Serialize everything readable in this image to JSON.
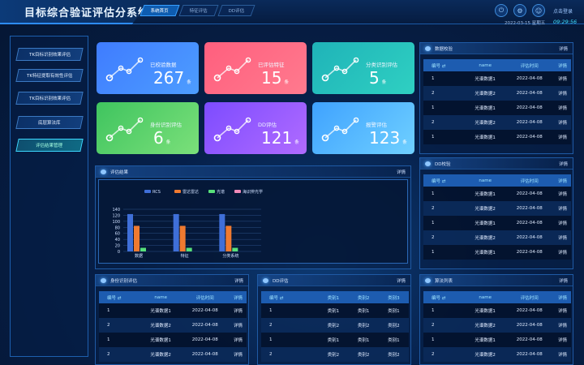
{
  "header": {
    "title": "目标综合验证评估分系统",
    "tabs": [
      "系统首页",
      "特征评估",
      "DD评估"
    ],
    "date": "2022-03-15  星期五",
    "time": "09:29:56",
    "login": "点击登录"
  },
  "sidebar": {
    "items": [
      "TK目标识别效果评估",
      "TK特征提取有效性评估",
      "TK目标识别效果评估",
      "底层算法库",
      "评估结果管理"
    ]
  },
  "cards": [
    {
      "label": "已校验数据",
      "value": "267",
      "unit": "条",
      "c1": "#3f7cff",
      "c2": "#4d9dff"
    },
    {
      "label": "已评估特征",
      "value": "15",
      "unit": "条",
      "c1": "#ff5f7e",
      "c2": "#ff7a8e"
    },
    {
      "label": "分类识别评估",
      "value": "5",
      "unit": "条",
      "c1": "#1fb3b8",
      "c2": "#2fd0c2"
    },
    {
      "label": "身份识别评估",
      "value": "6",
      "unit": "条",
      "c1": "#3fc45f",
      "c2": "#7be07a"
    },
    {
      "label": "DD评估",
      "value": "121",
      "unit": "条",
      "c1": "#7d4cff",
      "c2": "#b06bff"
    },
    {
      "label": "报警评估",
      "value": "123",
      "unit": "条",
      "c1": "#3fa2ff",
      "c2": "#6fd0ff"
    }
  ],
  "eval_panel": {
    "title": "评估结果",
    "more": "详情"
  },
  "chart_data": {
    "type": "bar",
    "categories": [
      "数据",
      "特征",
      "分类系统"
    ],
    "series": [
      {
        "name": "RCS",
        "color": "#3f6fd8",
        "values": [
          124,
          124,
          124
        ]
      },
      {
        "name": "雷达雷达",
        "color": "#ef7a30",
        "values": [
          85,
          85,
          85
        ]
      },
      {
        "name": "光谱",
        "color": "#58e07a",
        "values": [
          12,
          12,
          12
        ]
      },
      {
        "name": "海识辨光学",
        "color": "#f08ab8",
        "values": [
          0,
          0,
          0
        ]
      }
    ],
    "yticks": [
      0,
      20,
      40,
      60,
      80,
      100,
      120,
      140
    ],
    "ylim": [
      0,
      140
    ]
  },
  "table_headers_a": [
    "编号 ⇄",
    "name",
    "评估时间",
    "详情"
  ],
  "table_headers_b": [
    "编号 ⇄",
    "类别1",
    "类别2",
    "类别3"
  ],
  "panel_data_check": {
    "title": "数据校验",
    "more": "详情",
    "rows": [
      [
        "1",
        "光谱数据1",
        "2022-04-08",
        "详情"
      ],
      [
        "2",
        "光谱数据2",
        "2022-04-08",
        "详情"
      ],
      [
        "1",
        "光谱数据1",
        "2022-04-08",
        "详情"
      ],
      [
        "2",
        "光谱数据2",
        "2022-04-08",
        "详情"
      ],
      [
        "1",
        "光谱数据1",
        "2022-04-08",
        "详情"
      ]
    ]
  },
  "panel_dd_check": {
    "title": "DD校验",
    "more": "详情",
    "rows": [
      [
        "1",
        "光谱数据1",
        "2022-04-08",
        "详情"
      ],
      [
        "2",
        "光谱数据2",
        "2022-04-08",
        "详情"
      ],
      [
        "1",
        "光谱数据1",
        "2022-04-08",
        "详情"
      ],
      [
        "2",
        "光谱数据2",
        "2022-04-08",
        "详情"
      ],
      [
        "1",
        "光谱数据1",
        "2022-04-08",
        "详情"
      ]
    ]
  },
  "panel_identity": {
    "title": "身份识别评估",
    "more": "详情",
    "rows": [
      [
        "1",
        "光谱数据1",
        "2022-04-08",
        "详情"
      ],
      [
        "2",
        "光谱数据2",
        "2022-04-08",
        "详情"
      ],
      [
        "1",
        "光谱数据1",
        "2022-04-08",
        "详情"
      ],
      [
        "2",
        "光谱数据2",
        "2022-04-08",
        "详情"
      ]
    ]
  },
  "panel_dd_eval": {
    "title": "DD评估",
    "more": "详情",
    "rows": [
      [
        "1",
        "类别1",
        "类别1",
        "类别1"
      ],
      [
        "2",
        "类别2",
        "类别2",
        "类别2"
      ],
      [
        "1",
        "类别1",
        "类别1",
        "类别1"
      ],
      [
        "2",
        "类别2",
        "类别2",
        "类别2"
      ]
    ]
  },
  "panel_algo": {
    "title": "算法列表",
    "more": "详情",
    "rows": [
      [
        "1",
        "光谱数据1",
        "2022-04-08",
        "详情"
      ],
      [
        "2",
        "光谱数据2",
        "2022-04-08",
        "详情"
      ],
      [
        "1",
        "光谱数据1",
        "2022-04-08",
        "详情"
      ],
      [
        "2",
        "光谱数据2",
        "2022-04-08",
        "详情"
      ]
    ]
  }
}
